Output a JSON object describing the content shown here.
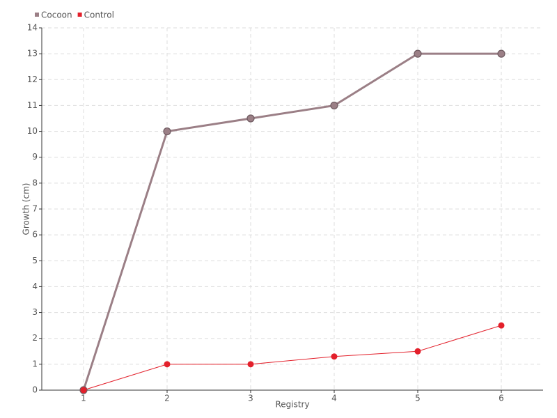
{
  "chart_data": {
    "type": "line",
    "x_label": "Registry",
    "y_label": "Growth (cm)",
    "x": [
      1,
      2,
      3,
      4,
      5,
      6
    ],
    "xlim": [
      0.5,
      6.5
    ],
    "xticks": [
      1,
      2,
      3,
      4,
      5,
      6
    ],
    "ylim": [
      0,
      14
    ],
    "yticks": [
      0,
      1,
      2,
      3,
      4,
      5,
      6,
      7,
      8,
      9,
      10,
      11,
      12,
      13,
      14
    ],
    "grid": true,
    "legend": "top-left",
    "series": [
      {
        "name": "Cocoon",
        "color": "#9b7f86",
        "values": [
          0,
          10,
          10.5,
          11,
          13,
          13
        ]
      },
      {
        "name": "Control",
        "color": "#e3202b",
        "values": [
          0,
          1,
          1,
          1.3,
          1.5,
          2.5
        ]
      }
    ]
  }
}
